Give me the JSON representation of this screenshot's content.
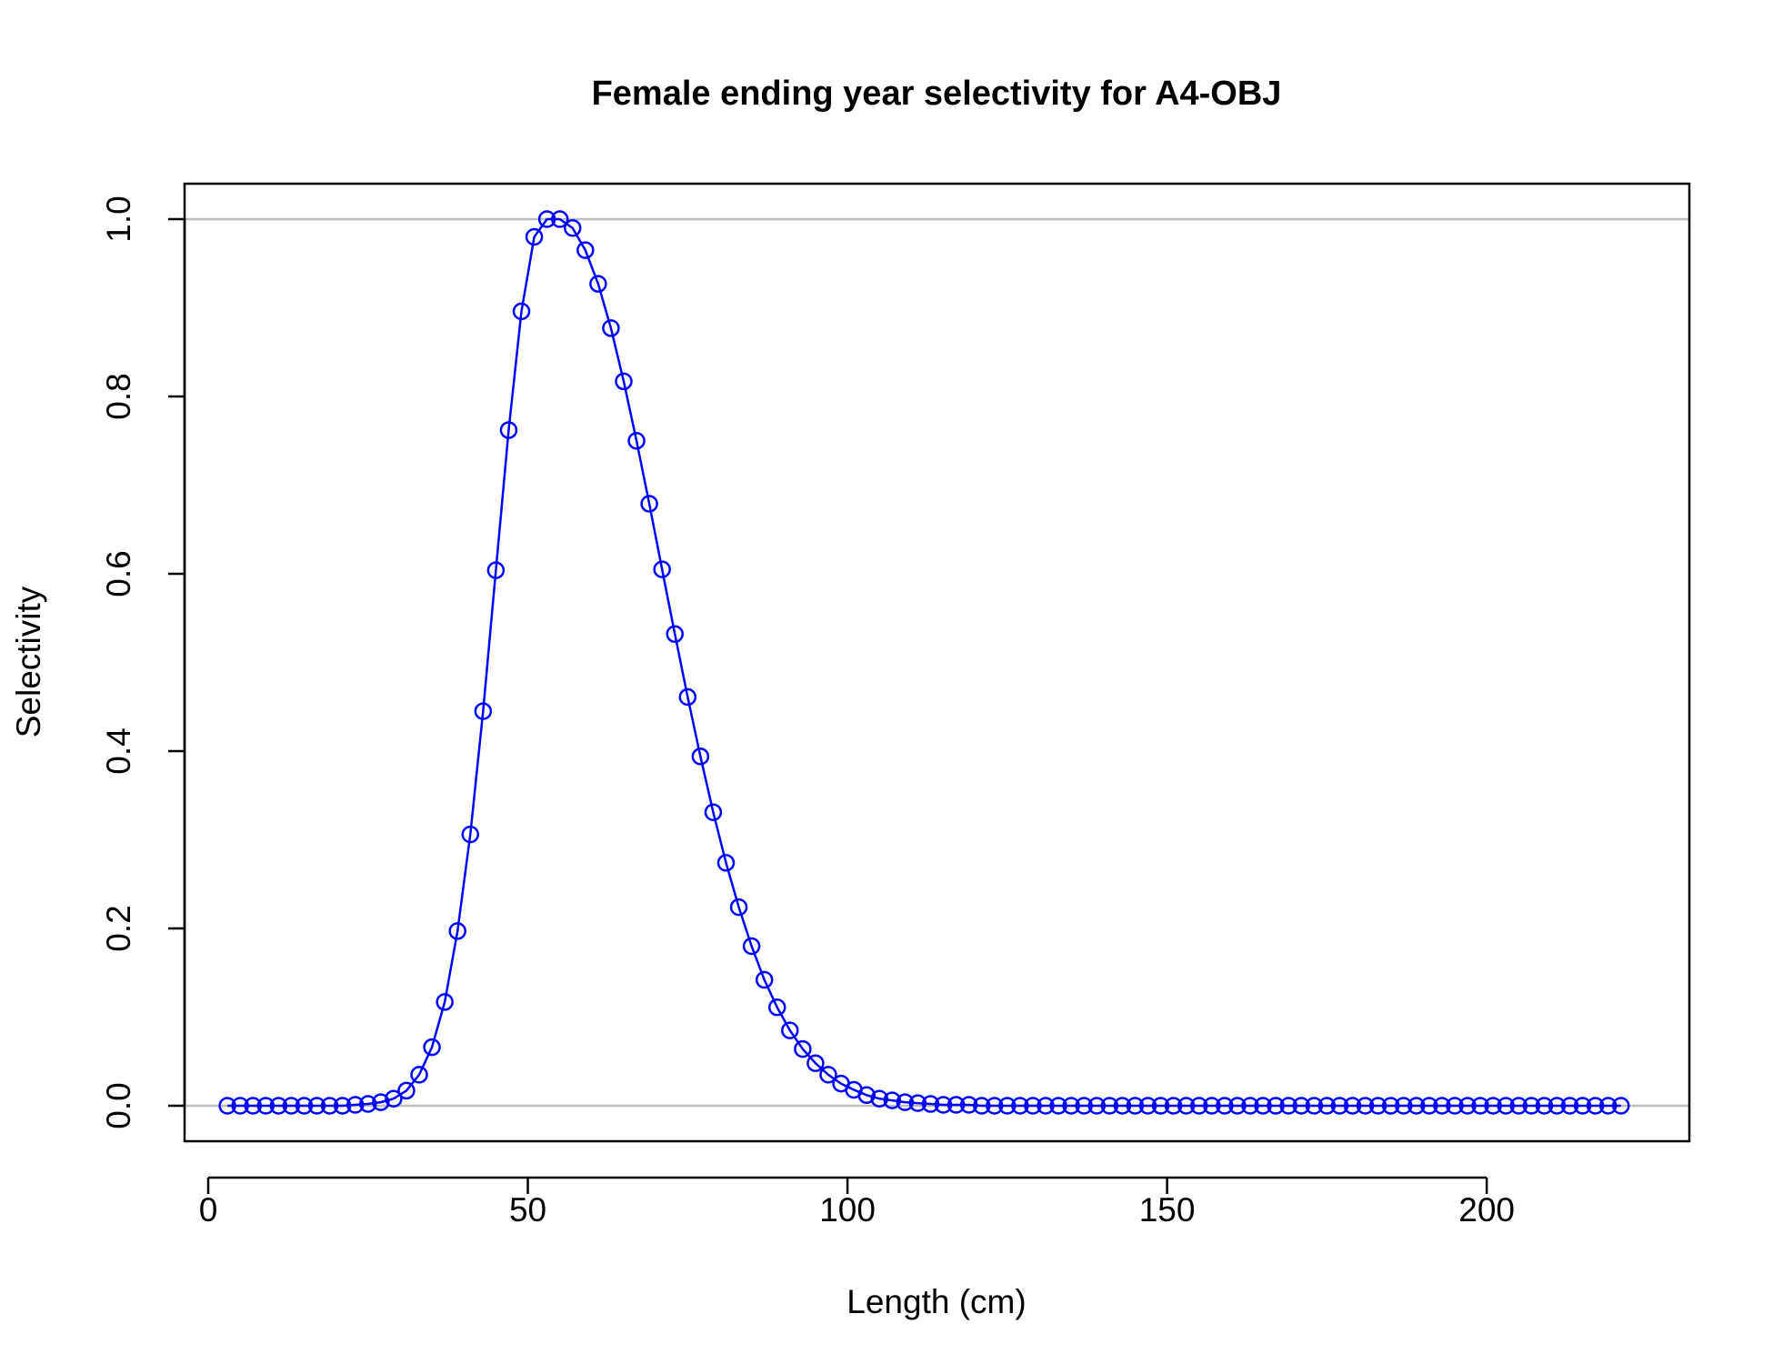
{
  "chart_data": {
    "type": "line",
    "title": "Female ending year selectivity for A4-OBJ",
    "xlabel": "Length (cm)",
    "ylabel": "Selectivity",
    "xlim": [
      -3.7,
      231.7
    ],
    "ylim": [
      -0.04,
      1.04
    ],
    "xticks": [
      0,
      50,
      100,
      150,
      200
    ],
    "xtick_labels": [
      "0",
      "50",
      "100",
      "150",
      "200"
    ],
    "yticks": [
      0,
      0.2,
      0.4,
      0.6,
      0.8,
      1.0
    ],
    "ytick_labels": [
      "0.0",
      "0.2",
      "0.4",
      "0.6",
      "0.8",
      "1.0"
    ],
    "reference_lines": [
      0,
      1
    ],
    "reference_line_color": "#bebebe",
    "series_color": "#0000ff",
    "grid": false,
    "markers": "open-circle",
    "x": [
      3,
      5,
      7,
      9,
      11,
      13,
      15,
      17,
      19,
      21,
      23,
      25,
      27,
      29,
      31,
      33,
      35,
      37,
      39,
      41,
      43,
      45,
      47,
      49,
      51,
      53,
      55,
      57,
      59,
      61,
      63,
      65,
      67,
      69,
      71,
      73,
      75,
      77,
      79,
      81,
      83,
      85,
      87,
      89,
      91,
      93,
      95,
      97,
      99,
      101,
      103,
      105,
      107,
      109,
      111,
      113,
      115,
      117,
      119,
      121,
      123,
      125,
      127,
      129,
      131,
      133,
      135,
      137,
      139,
      141,
      143,
      145,
      147,
      149,
      151,
      153,
      155,
      157,
      159,
      161,
      163,
      165,
      167,
      169,
      171,
      173,
      175,
      177,
      179,
      181,
      183,
      185,
      187,
      189,
      191,
      193,
      195,
      197,
      199,
      201,
      203,
      205,
      207,
      209,
      211,
      213,
      215,
      217,
      219,
      221
    ],
    "series": [
      {
        "values": [
          0,
          0,
          0,
          0,
          0,
          0,
          0,
          0,
          0,
          0,
          0.001,
          0.002,
          0.004,
          0.008,
          0.017,
          0.035,
          0.066,
          0.117,
          0.197,
          0.306,
          0.445,
          0.604,
          0.762,
          0.896,
          0.98,
          1.0,
          1.0,
          0.99,
          0.965,
          0.927,
          0.877,
          0.817,
          0.75,
          0.679,
          0.605,
          0.532,
          0.461,
          0.394,
          0.331,
          0.274,
          0.224,
          0.18,
          0.142,
          0.111,
          0.085,
          0.064,
          0.048,
          0.035,
          0.025,
          0.018,
          0.012,
          0.008,
          0.006,
          0.004,
          0.003,
          0.002,
          0.001,
          0.001,
          0.001,
          0,
          0,
          0,
          0,
          0,
          0,
          0,
          0,
          0,
          0,
          0,
          0,
          0,
          0,
          0,
          0,
          0,
          0,
          0,
          0,
          0,
          0,
          0,
          0,
          0,
          0,
          0,
          0,
          0,
          0,
          0,
          0,
          0,
          0,
          0,
          0,
          0,
          0,
          0,
          0,
          0,
          0,
          0,
          0,
          0,
          0,
          0,
          0,
          0,
          0,
          0
        ]
      }
    ]
  }
}
